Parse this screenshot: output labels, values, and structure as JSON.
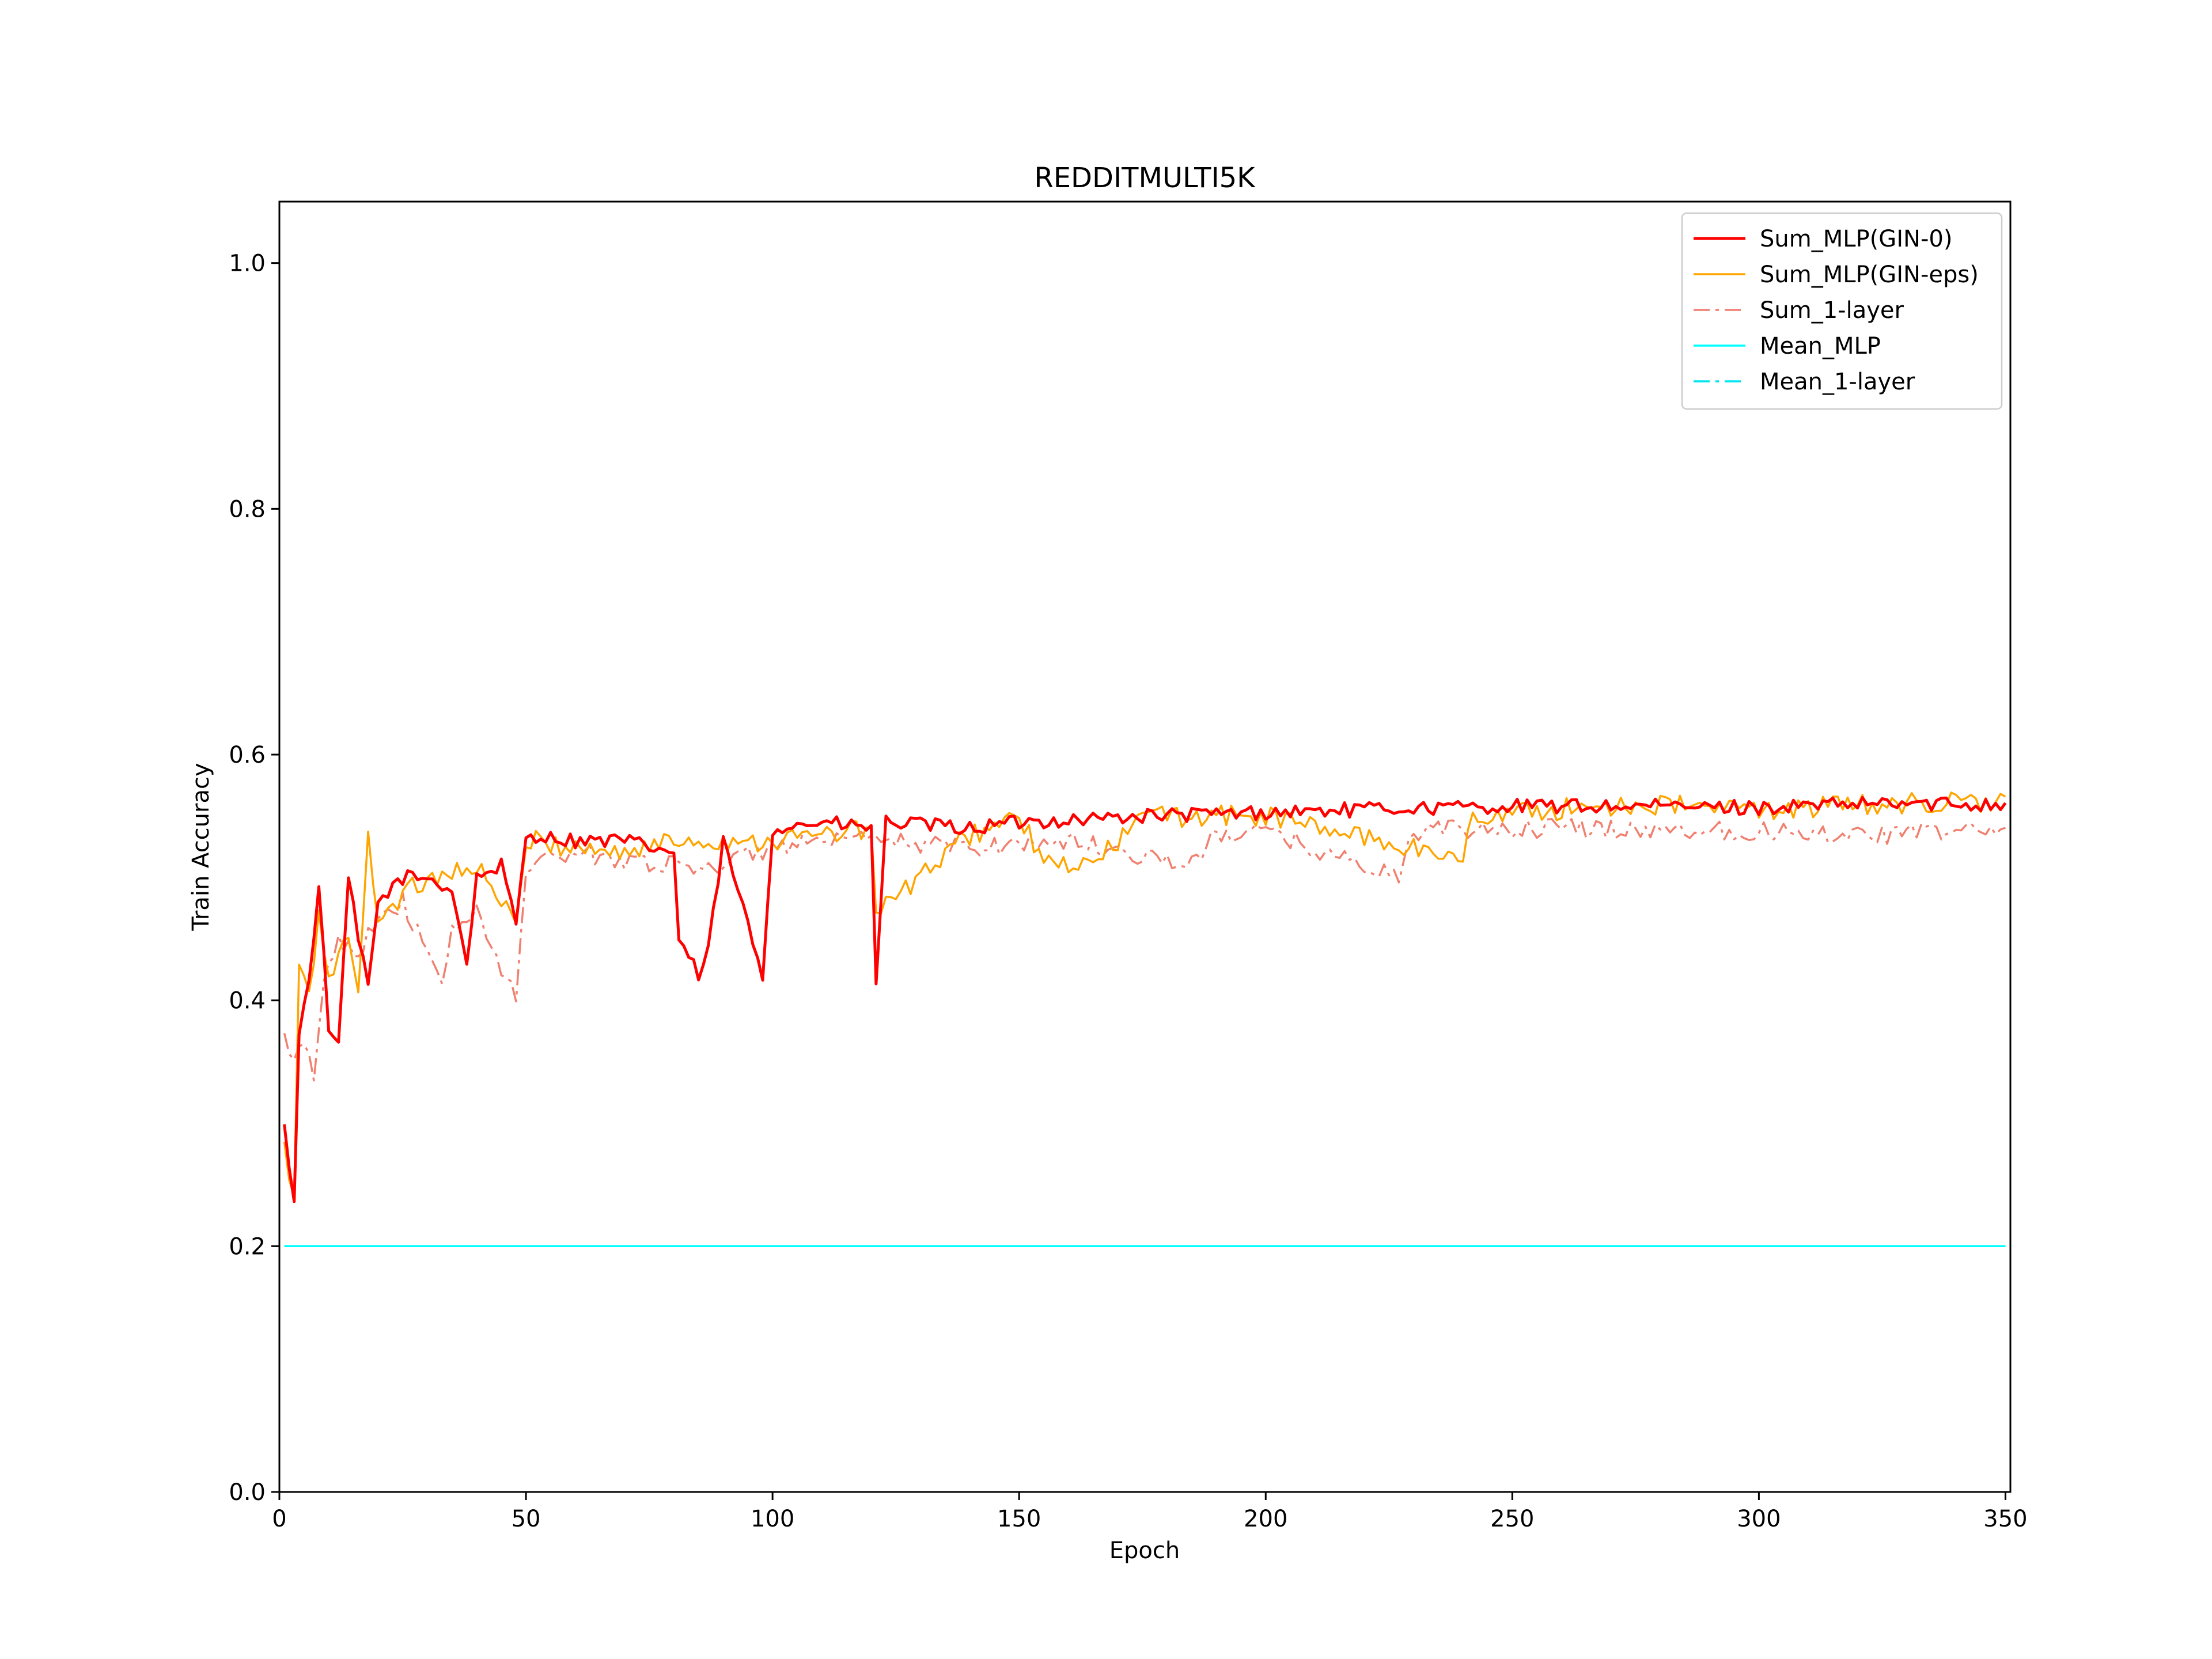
{
  "chart_data": {
    "type": "line",
    "title": "REDDITMULTI5K",
    "xlabel": "Epoch",
    "ylabel": "Train Accuracy",
    "xlim": [
      0,
      351
    ],
    "ylim": [
      0.0,
      1.05
    ],
    "xticks": [
      0,
      50,
      100,
      150,
      200,
      250,
      300,
      350
    ],
    "yticks": [
      0.0,
      0.2,
      0.4,
      0.6,
      0.8,
      1.0
    ],
    "grid": false,
    "legend_position": "top-right",
    "epochs": 350,
    "series": [
      {
        "name": "Sum_MLP(GIN-0)",
        "color": "#ff0000",
        "style": "solid",
        "anchors": [
          [
            1,
            0.295
          ],
          [
            3,
            0.24
          ],
          [
            4,
            0.37
          ],
          [
            6,
            0.42
          ],
          [
            8,
            0.49
          ],
          [
            10,
            0.38
          ],
          [
            12,
            0.36
          ],
          [
            14,
            0.5
          ],
          [
            16,
            0.45
          ],
          [
            18,
            0.41
          ],
          [
            20,
            0.48
          ],
          [
            25,
            0.5
          ],
          [
            30,
            0.5
          ],
          [
            35,
            0.49
          ],
          [
            38,
            0.43
          ],
          [
            40,
            0.5
          ],
          [
            45,
            0.51
          ],
          [
            48,
            0.46
          ],
          [
            50,
            0.535
          ],
          [
            60,
            0.53
          ],
          [
            70,
            0.53
          ],
          [
            80,
            0.52
          ],
          [
            81,
            0.45
          ],
          [
            85,
            0.42
          ],
          [
            87,
            0.44
          ],
          [
            90,
            0.53
          ],
          [
            98,
            0.42
          ],
          [
            100,
            0.54
          ],
          [
            110,
            0.545
          ],
          [
            120,
            0.54
          ],
          [
            121,
            0.415
          ],
          [
            123,
            0.545
          ],
          [
            140,
            0.54
          ],
          [
            150,
            0.545
          ],
          [
            175,
            0.55
          ],
          [
            200,
            0.553
          ],
          [
            225,
            0.556
          ],
          [
            250,
            0.558
          ],
          [
            275,
            0.558
          ],
          [
            300,
            0.557
          ],
          [
            325,
            0.56
          ],
          [
            350,
            0.56
          ]
        ],
        "noise": 0.006
      },
      {
        "name": "Sum_MLP(GIN-eps)",
        "color": "#ffa500",
        "style": "solid",
        "anchors": [
          [
            1,
            0.28
          ],
          [
            3,
            0.235
          ],
          [
            4,
            0.43
          ],
          [
            6,
            0.4
          ],
          [
            8,
            0.47
          ],
          [
            10,
            0.42
          ],
          [
            14,
            0.45
          ],
          [
            16,
            0.41
          ],
          [
            18,
            0.53
          ],
          [
            20,
            0.47
          ],
          [
            30,
            0.5
          ],
          [
            40,
            0.51
          ],
          [
            48,
            0.46
          ],
          [
            50,
            0.53
          ],
          [
            70,
            0.52
          ],
          [
            80,
            0.53
          ],
          [
            100,
            0.53
          ],
          [
            120,
            0.54
          ],
          [
            121,
            0.47
          ],
          [
            140,
            0.535
          ],
          [
            150,
            0.55
          ],
          [
            155,
            0.51
          ],
          [
            165,
            0.51
          ],
          [
            175,
            0.55
          ],
          [
            200,
            0.55
          ],
          [
            240,
            0.515
          ],
          [
            242,
            0.55
          ],
          [
            275,
            0.56
          ],
          [
            300,
            0.555
          ],
          [
            325,
            0.56
          ],
          [
            350,
            0.562
          ]
        ],
        "noise": 0.009
      },
      {
        "name": "Sum_1-layer",
        "color": "#f08070",
        "style": "dashdot",
        "anchors": [
          [
            1,
            0.37
          ],
          [
            3,
            0.345
          ],
          [
            5,
            0.37
          ],
          [
            7,
            0.33
          ],
          [
            9,
            0.42
          ],
          [
            12,
            0.45
          ],
          [
            16,
            0.44
          ],
          [
            20,
            0.47
          ],
          [
            25,
            0.48
          ],
          [
            33,
            0.41
          ],
          [
            35,
            0.46
          ],
          [
            40,
            0.47
          ],
          [
            48,
            0.4
          ],
          [
            50,
            0.51
          ],
          [
            60,
            0.52
          ],
          [
            80,
            0.51
          ],
          [
            90,
            0.51
          ],
          [
            100,
            0.525
          ],
          [
            120,
            0.53
          ],
          [
            140,
            0.525
          ],
          [
            160,
            0.53
          ],
          [
            185,
            0.51
          ],
          [
            190,
            0.535
          ],
          [
            200,
            0.537
          ],
          [
            227,
            0.5
          ],
          [
            230,
            0.538
          ],
          [
            260,
            0.54
          ],
          [
            300,
            0.538
          ],
          [
            325,
            0.535
          ],
          [
            350,
            0.54
          ]
        ],
        "noise": 0.008
      },
      {
        "name": "Mean_MLP",
        "color": "#00ffff",
        "style": "solid",
        "anchors": [
          [
            1,
            0.2
          ],
          [
            350,
            0.2
          ]
        ],
        "noise": 0
      },
      {
        "name": "Mean_1-layer",
        "color": "#00e5ee",
        "style": "dashdot",
        "anchors": [
          [
            1,
            0.2
          ],
          [
            350,
            0.2
          ]
        ],
        "noise": 0
      }
    ]
  }
}
